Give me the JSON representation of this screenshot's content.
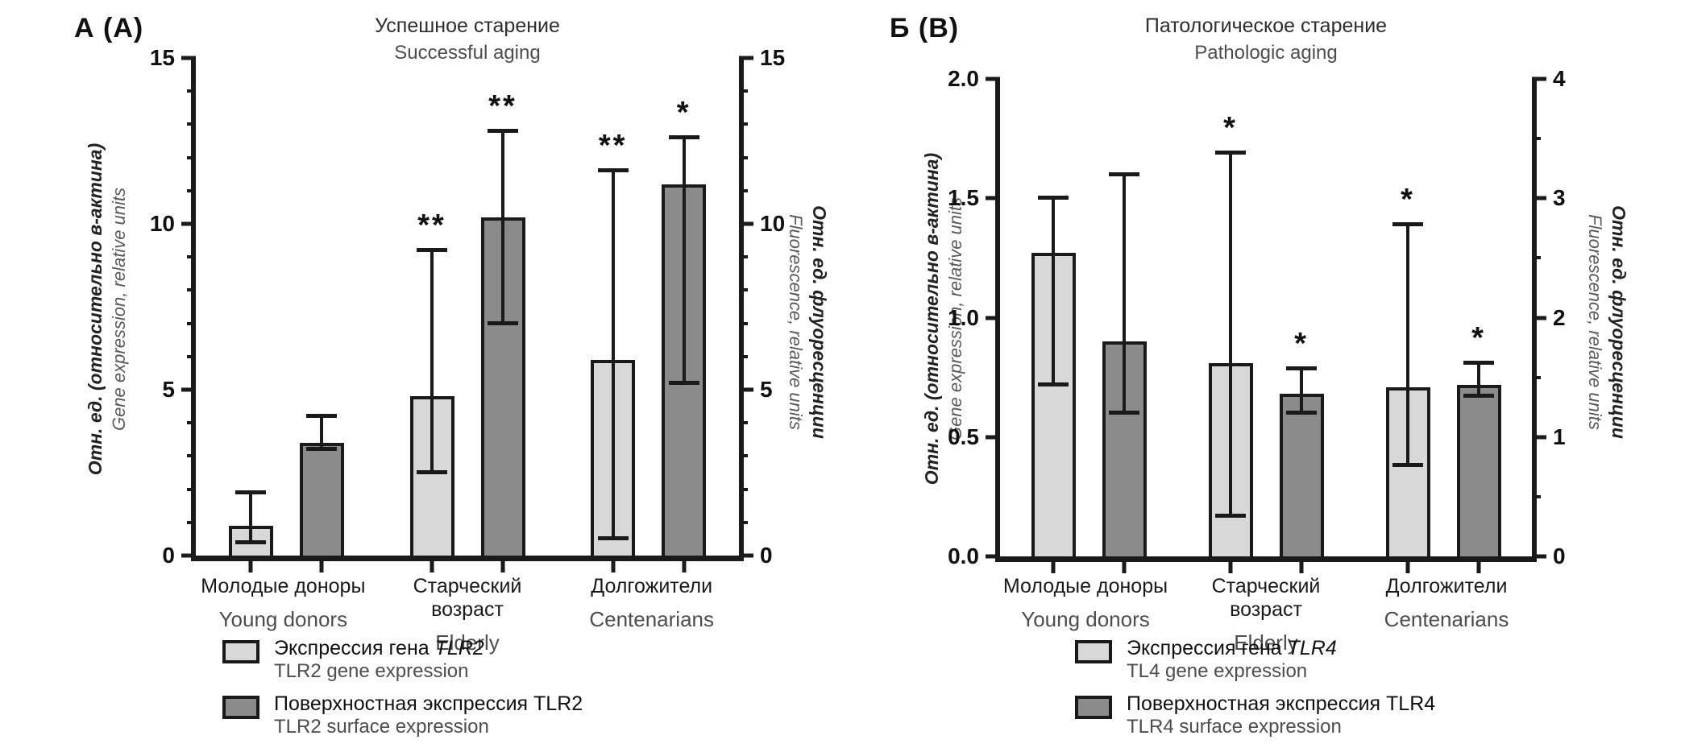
{
  "chart_data": [
    {
      "type": "bar",
      "panel_label": "А (А)",
      "title": "Успешное старение",
      "subtitle": "Successful aging",
      "categories_ru": [
        "Молодые доноры",
        "Старческий возраст",
        "Долгожители"
      ],
      "categories_en": [
        "Young donors",
        "Elderly",
        "Centenarians"
      ],
      "left_axis": {
        "label_ru": "Отн. ед. (относительно в-актина)",
        "label_en": "Gene expression, relative units",
        "min": 0,
        "max": 15,
        "minor_step": 1,
        "ticks": [
          {
            "value": 0,
            "label": "0"
          },
          {
            "value": 5,
            "label": "5"
          },
          {
            "value": 10,
            "label": "10"
          },
          {
            "value": 15,
            "label": "15"
          }
        ]
      },
      "right_axis": {
        "label_ru": "Отн. ед. флуоресценции",
        "label_en": "Fluorescence, relative units",
        "min": 0,
        "max": 15,
        "minor_step": 1,
        "ticks": [
          {
            "value": 0,
            "label": "0"
          },
          {
            "value": 5,
            "label": "5"
          },
          {
            "value": 10,
            "label": "10"
          },
          {
            "value": 15,
            "label": "15"
          }
        ]
      },
      "series": [
        {
          "key": "tlr2-gene",
          "axis": "left",
          "color": "#d8d8d8",
          "legend_ru": "Экспрессия гена",
          "legend_ru_italic": "TLR2",
          "legend_en": "TLR2 gene expression",
          "values": [
            0.9,
            4.8,
            5.9
          ],
          "err_low": [
            0.4,
            2.5,
            0.5
          ],
          "err_high": [
            1.9,
            9.2,
            11.6
          ],
          "significance": [
            "",
            "**",
            "**"
          ]
        },
        {
          "key": "tlr2-surface",
          "axis": "right",
          "color": "#8b8b8b",
          "legend_ru": "Поверхностная экспрессия TLR2",
          "legend_ru_italic": "",
          "legend_en": "TLR2 surface expression",
          "values": [
            3.4,
            10.2,
            11.2
          ],
          "err_low": [
            3.2,
            7.0,
            5.2
          ],
          "err_high": [
            4.2,
            12.8,
            12.6
          ],
          "significance": [
            "",
            "**",
            "*"
          ]
        }
      ]
    },
    {
      "type": "bar",
      "panel_label": "Б (В)",
      "title": "Патологическое старение",
      "subtitle": "Pathologic aging",
      "categories_ru": [
        "Молодые доноры",
        "Старческий возраст",
        "Долгожители"
      ],
      "categories_en": [
        "Young donors",
        "Elderly",
        "Centenarians"
      ],
      "left_axis": {
        "label_ru": "Отн. ед. (относительно в-актина)",
        "label_en": "Gene expression, relative units",
        "min": 0,
        "max": 2,
        "minor_step": null,
        "ticks": [
          {
            "value": 0,
            "label": "0.0"
          },
          {
            "value": 0.5,
            "label": "0.5"
          },
          {
            "value": 1,
            "label": "1.0"
          },
          {
            "value": 1.5,
            "label": "1.5"
          },
          {
            "value": 2,
            "label": "2.0"
          }
        ]
      },
      "right_axis": {
        "label_ru": "Отн. ед. флуоресценции",
        "label_en": "Fluorescence, relative units",
        "min": 0,
        "max": 4,
        "minor_step": 0.5,
        "ticks": [
          {
            "value": 0,
            "label": "0"
          },
          {
            "value": 1,
            "label": "1"
          },
          {
            "value": 2,
            "label": "2"
          },
          {
            "value": 3,
            "label": "3"
          },
          {
            "value": 4,
            "label": "4"
          }
        ]
      },
      "series": [
        {
          "key": "tlr4-gene",
          "axis": "left",
          "color": "#d8d8d8",
          "legend_ru": "Экспрессия гена",
          "legend_ru_italic": "TLR4",
          "legend_en": "TL4 gene expression",
          "values": [
            1.27,
            0.81,
            0.71
          ],
          "err_low": [
            0.72,
            0.17,
            0.38
          ],
          "err_high": [
            1.5,
            1.69,
            1.39
          ],
          "significance": [
            "",
            "*",
            "*"
          ]
        },
        {
          "key": "tlr4-surface",
          "axis": "right",
          "color": "#8b8b8b",
          "legend_ru": "Поверхностная экспрессия TLR4",
          "legend_ru_italic": "",
          "legend_en": "TLR4 surface expression",
          "values": [
            1.8,
            1.36,
            1.44
          ],
          "err_low": [
            1.2,
            1.2,
            1.34
          ],
          "err_high": [
            3.2,
            1.57,
            1.62
          ],
          "significance": [
            "",
            "*",
            "*"
          ]
        }
      ]
    }
  ]
}
